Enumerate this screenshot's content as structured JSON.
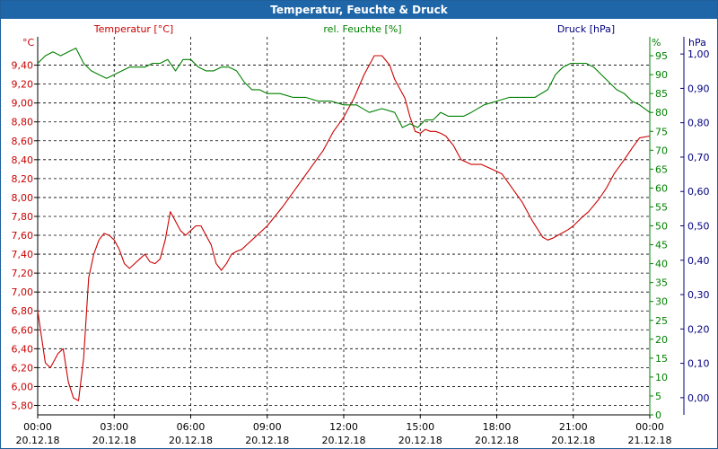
{
  "title": "Temperatur, Feuchte & Druck",
  "colors": {
    "temperature": "#cc0000",
    "humidity": "#008000",
    "pressure": "#000080",
    "titlebar": "#1f66a8",
    "axis": "#000000",
    "grid": "#000000"
  },
  "chart_data": {
    "type": "line",
    "title": "Temperatur, Feuchte & Druck",
    "grid": true,
    "x_ticks": [
      {
        "time": "00:00",
        "date": "20.12.18"
      },
      {
        "time": "03:00",
        "date": "20.12.18"
      },
      {
        "time": "06:00",
        "date": "20.12.18"
      },
      {
        "time": "09:00",
        "date": "20.12.18"
      },
      {
        "time": "12:00",
        "date": "20.12.18"
      },
      {
        "time": "15:00",
        "date": "20.12.18"
      },
      {
        "time": "18:00",
        "date": "20.12.18"
      },
      {
        "time": "21:00",
        "date": "20.12.18"
      },
      {
        "time": "00:00",
        "date": "21.12.18"
      }
    ],
    "x_range_hours": [
      0,
      24
    ],
    "axes": {
      "temperature": {
        "label": "Temperatur [°C]",
        "unit": "°C",
        "range": [
          5.7,
          9.7
        ],
        "ticks": [
          "5,80",
          "6,00",
          "6,20",
          "6,40",
          "6,60",
          "6,80",
          "7,00",
          "7,20",
          "7,40",
          "7,60",
          "7,80",
          "8,00",
          "8,20",
          "8,40",
          "8,60",
          "8,80",
          "9,00",
          "9,20",
          "9,40"
        ],
        "tick_values": [
          5.8,
          6.0,
          6.2,
          6.4,
          6.6,
          6.8,
          7.0,
          7.2,
          7.4,
          7.6,
          7.8,
          8.0,
          8.2,
          8.4,
          8.6,
          8.8,
          9.0,
          9.2,
          9.4
        ]
      },
      "humidity": {
        "label": "rel. Feuchte [%]",
        "unit": "%",
        "range": [
          0,
          100
        ],
        "ticks": [
          "0",
          "5",
          "10",
          "15",
          "20",
          "25",
          "30",
          "35",
          "40",
          "45",
          "50",
          "55",
          "60",
          "65",
          "70",
          "75",
          "80",
          "85",
          "90",
          "95"
        ],
        "tick_values": [
          0,
          5,
          10,
          15,
          20,
          25,
          30,
          35,
          40,
          45,
          50,
          55,
          60,
          65,
          70,
          75,
          80,
          85,
          90,
          95
        ]
      },
      "pressure": {
        "label": "Druck [hPa]",
        "unit": "hPa",
        "range": [
          -0.05,
          1.05
        ],
        "ticks": [
          "0,00",
          "0,10",
          "0,20",
          "0,30",
          "0,40",
          "0,50",
          "0,60",
          "0,70",
          "0,80",
          "0,90",
          "1,00"
        ],
        "tick_values": [
          0,
          0.1,
          0.2,
          0.3,
          0.4,
          0.5,
          0.6,
          0.7,
          0.8,
          0.9,
          1.0
        ]
      }
    },
    "series": [
      {
        "name": "Temperatur [°C]",
        "axis": "temperature",
        "x": [
          0,
          0.3,
          0.5,
          0.8,
          1.0,
          1.2,
          1.4,
          1.6,
          1.8,
          2.0,
          2.2,
          2.4,
          2.6,
          2.8,
          3.0,
          3.2,
          3.4,
          3.6,
          3.8,
          4.0,
          4.2,
          4.4,
          4.6,
          4.8,
          5.0,
          5.2,
          5.4,
          5.6,
          5.8,
          6.0,
          6.2,
          6.4,
          6.6,
          6.8,
          7.0,
          7.2,
          7.4,
          7.6,
          7.8,
          8.0,
          8.2,
          8.4,
          8.6,
          8.8,
          9.0,
          9.3,
          9.6,
          10.0,
          10.4,
          10.8,
          11.2,
          11.6,
          12.0,
          12.4,
          12.8,
          13.2,
          13.5,
          13.8,
          14.0,
          14.2,
          14.4,
          14.6,
          14.8,
          15.0,
          15.2,
          15.4,
          15.6,
          15.8,
          16.0,
          16.3,
          16.6,
          17.0,
          17.4,
          17.8,
          18.2,
          18.6,
          19.0,
          19.4,
          19.8,
          20.0,
          20.2,
          20.4,
          20.6,
          20.8,
          21.0,
          21.3,
          21.6,
          22.0,
          22.3,
          22.6,
          23.0,
          23.3,
          23.6,
          24.0
        ],
        "y": [
          6.8,
          6.25,
          6.2,
          6.35,
          6.4,
          6.05,
          5.88,
          5.85,
          6.3,
          7.15,
          7.4,
          7.55,
          7.62,
          7.6,
          7.55,
          7.45,
          7.3,
          7.25,
          7.3,
          7.35,
          7.4,
          7.32,
          7.3,
          7.35,
          7.55,
          7.85,
          7.75,
          7.65,
          7.6,
          7.65,
          7.7,
          7.7,
          7.6,
          7.5,
          7.3,
          7.23,
          7.3,
          7.4,
          7.43,
          7.45,
          7.5,
          7.55,
          7.6,
          7.65,
          7.7,
          7.8,
          7.9,
          8.05,
          8.2,
          8.35,
          8.5,
          8.7,
          8.85,
          9.05,
          9.3,
          9.5,
          9.5,
          9.4,
          9.25,
          9.15,
          9.05,
          8.85,
          8.7,
          8.68,
          8.72,
          8.7,
          8.7,
          8.68,
          8.65,
          8.55,
          8.4,
          8.35,
          8.35,
          8.3,
          8.25,
          8.1,
          7.95,
          7.75,
          7.58,
          7.55,
          7.57,
          7.6,
          7.63,
          7.66,
          7.7,
          7.78,
          7.85,
          7.98,
          8.1,
          8.25,
          8.4,
          8.52,
          8.63,
          8.65
        ]
      },
      {
        "name": "rel. Feuchte [%]",
        "axis": "humidity",
        "x": [
          0,
          0.3,
          0.6,
          0.9,
          1.2,
          1.5,
          1.8,
          2.1,
          2.4,
          2.7,
          3.0,
          3.3,
          3.6,
          3.9,
          4.2,
          4.5,
          4.8,
          5.1,
          5.4,
          5.7,
          6.0,
          6.3,
          6.6,
          6.9,
          7.2,
          7.5,
          7.8,
          8.1,
          8.4,
          8.7,
          9.0,
          9.5,
          10.0,
          10.5,
          11.0,
          11.5,
          12.0,
          12.5,
          13.0,
          13.5,
          14.0,
          14.3,
          14.6,
          14.9,
          15.2,
          15.5,
          15.8,
          16.1,
          16.4,
          16.7,
          17.0,
          17.5,
          18.0,
          18.5,
          19.0,
          19.5,
          20.0,
          20.3,
          20.6,
          20.9,
          21.2,
          21.5,
          21.8,
          22.1,
          22.4,
          22.7,
          23.0,
          23.3,
          23.6,
          24.0
        ],
        "y": [
          93,
          95,
          96,
          95,
          96,
          97,
          93,
          91,
          90,
          89,
          90,
          91,
          92,
          92,
          92,
          93,
          93,
          94,
          91,
          94,
          94,
          92,
          91,
          91,
          92,
          92,
          91,
          88,
          86,
          86,
          85,
          85,
          84,
          84,
          83,
          83,
          82,
          82,
          80,
          81,
          80,
          76,
          77,
          76,
          78,
          78,
          80,
          79,
          79,
          79,
          80,
          82,
          83,
          84,
          84,
          84,
          86,
          90,
          92,
          93,
          93,
          93,
          92,
          90,
          88,
          86,
          85,
          83,
          82,
          80
        ]
      },
      {
        "name": "Druck [hPa]",
        "axis": "pressure",
        "x": [],
        "y": []
      }
    ]
  }
}
